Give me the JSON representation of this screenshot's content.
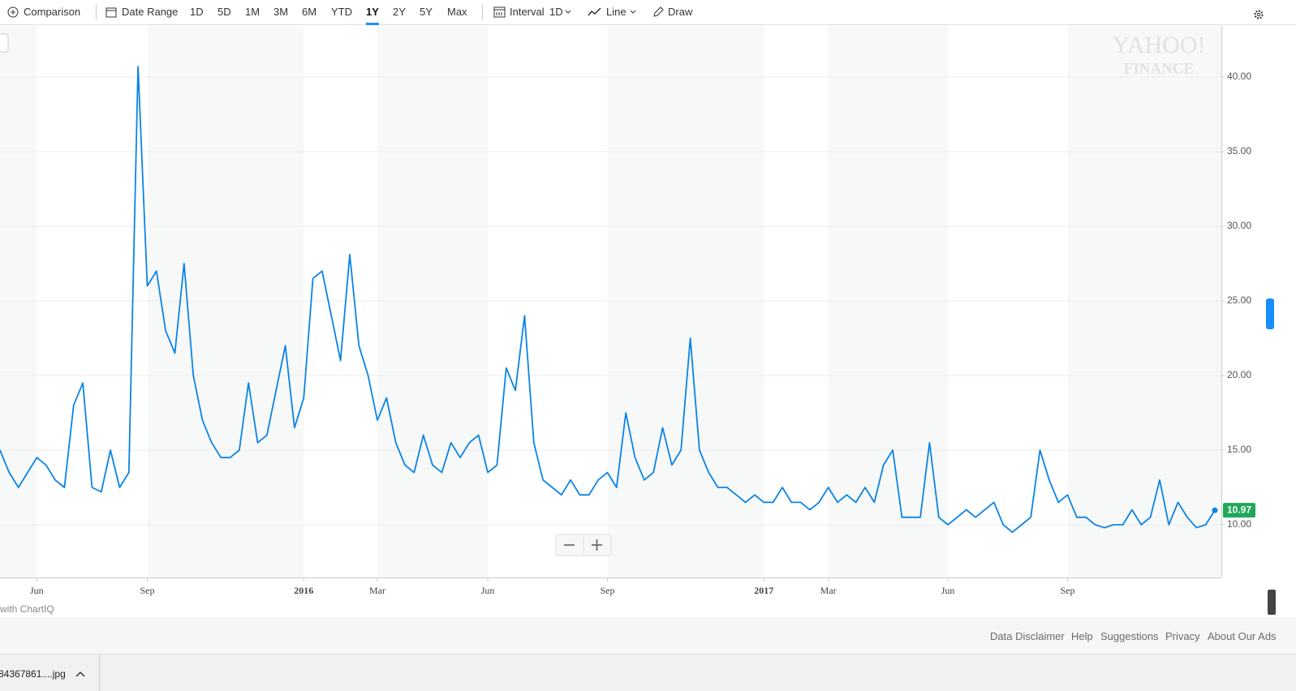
{
  "toolbar": {
    "comparison": "Comparison",
    "date_range": "Date Range",
    "ranges": [
      "1D",
      "5D",
      "1M",
      "3M",
      "6M",
      "YTD",
      "1Y",
      "2Y",
      "5Y",
      "Max"
    ],
    "selected": "1Y",
    "interval_label": "Interval",
    "interval": "1D",
    "chart_style": "Line",
    "draw": "Draw"
  },
  "chart_data": {
    "type": "line",
    "color": "#0a84e6",
    "last_label_color": "#1fa85a",
    "categories": [
      null,
      null,
      null,
      null,
      "Jun",
      null,
      null,
      null,
      null,
      null,
      null,
      null,
      null,
      null,
      null,
      null,
      "Sep",
      null,
      null,
      null,
      null,
      null,
      null,
      null,
      null,
      null,
      null,
      null,
      null,
      null,
      null,
      null,
      null,
      "2016",
      null,
      null,
      null,
      null,
      null,
      null,
      null,
      "Mar",
      null,
      null,
      null,
      null,
      null,
      null,
      null,
      null,
      null,
      null,
      null,
      "Jun",
      null,
      null,
      null,
      null,
      null,
      null,
      null,
      null,
      null,
      null,
      null,
      null,
      "Sep",
      null,
      null,
      null,
      null,
      null,
      null,
      null,
      null,
      null,
      null,
      null,
      null,
      null,
      null,
      null,
      null,
      "2017",
      null,
      null,
      null,
      null,
      null,
      null,
      "Mar",
      null,
      null,
      null,
      null,
      null,
      null,
      null,
      null,
      null,
      null,
      null,
      null,
      "Jun",
      null,
      null,
      null,
      null,
      null,
      null,
      null,
      null,
      null,
      null,
      null,
      null,
      "Sep",
      null,
      null,
      null,
      null,
      null,
      null,
      null,
      null,
      null,
      null,
      null,
      null,
      null,
      null,
      null,
      null
    ],
    "values": [
      15,
      13.5,
      12.5,
      13.5,
      14.5,
      14,
      13,
      12.5,
      18,
      19.5,
      12.5,
      12.2,
      15,
      12.5,
      13.5,
      40.7,
      26,
      27,
      23,
      21.5,
      27.5,
      20,
      17,
      15.5,
      14.5,
      14.5,
      15,
      19.5,
      15.5,
      16,
      19,
      22,
      16.5,
      18.5,
      26.5,
      27,
      24,
      21,
      28.1,
      22,
      20,
      17,
      18.5,
      15.5,
      14,
      13.5,
      16,
      14,
      13.5,
      15.5,
      14.5,
      15.5,
      16,
      13.5,
      14,
      20.5,
      19,
      24,
      15.5,
      13,
      12.5,
      12,
      13,
      12,
      12,
      13,
      13.5,
      12.5,
      17.5,
      14.5,
      13,
      13.5,
      16.5,
      14,
      15,
      22.5,
      15,
      13.5,
      12.5,
      12.5,
      12,
      11.5,
      12,
      11.5,
      11.5,
      12.5,
      11.5,
      11.5,
      11,
      11.5,
      12.5,
      11.5,
      12,
      11.5,
      12.5,
      11.5,
      14,
      15,
      10.5,
      10.5,
      10.5,
      15.5,
      10.5,
      10,
      10.5,
      11,
      10.5,
      11,
      11.5,
      10,
      9.5,
      10,
      10.5,
      15,
      13,
      11.5,
      12,
      10.5,
      10.5,
      10,
      9.8,
      10,
      10,
      11,
      10,
      10.5,
      13,
      10,
      11.5,
      10.5,
      9.8,
      10,
      10.97
    ],
    "ylim": [
      6.47,
      43.42
    ],
    "yticks": [
      {
        "value": 10,
        "label": "10.00"
      },
      {
        "value": 15,
        "label": "15.00"
      },
      {
        "value": 20,
        "label": "20.00"
      },
      {
        "value": 25,
        "label": "25.00"
      },
      {
        "value": 30,
        "label": "30.00"
      },
      {
        "value": 35,
        "label": "35.00"
      },
      {
        "value": 40,
        "label": "40.00"
      }
    ],
    "grid": true
  },
  "watermark": [
    "YAHOO!",
    "FINANCE"
  ],
  "credit": "with ChartIQ",
  "footer": {
    "links": [
      "Data Disclaimer",
      "Help",
      "Suggestions",
      "Privacy",
      "About Our Ads"
    ]
  },
  "download_bar": {
    "file": "84367861....jpg"
  }
}
